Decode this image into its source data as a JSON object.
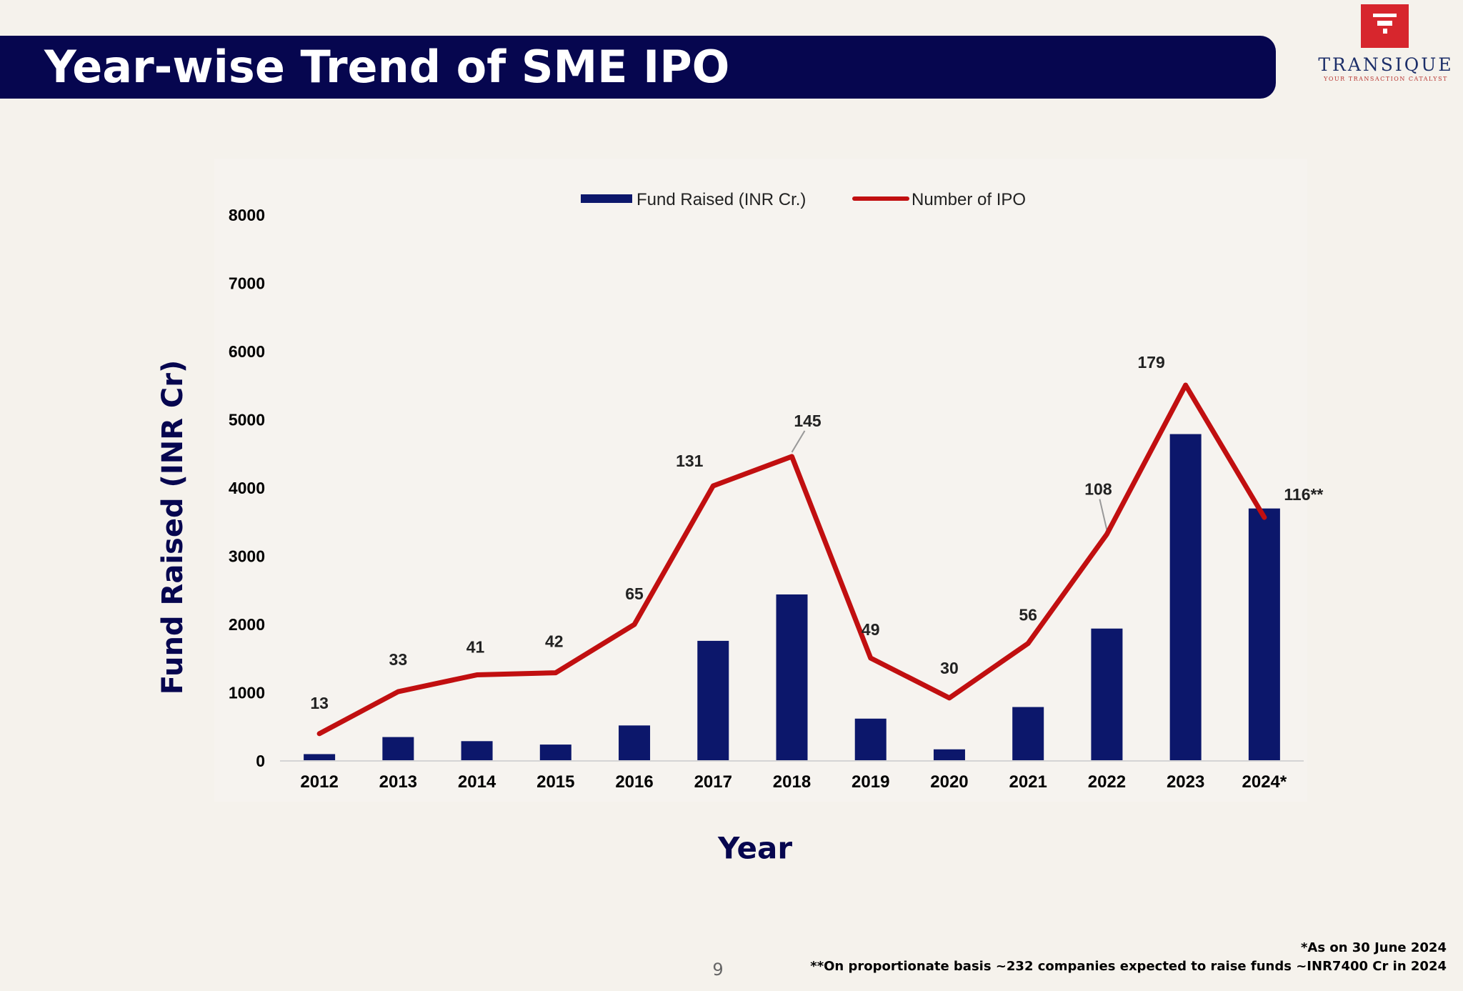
{
  "header": {
    "title": "Year-wise Trend of SME IPO"
  },
  "logo": {
    "name": "TRANSIQUE",
    "tagline": "YOUR TRANSACTION CATALYST"
  },
  "chart_data": {
    "type": "bar",
    "title": "",
    "xlabel": "Year",
    "ylabel": "Fund Raised (INR Cr)",
    "ylim": [
      0,
      8000
    ],
    "yticks": [
      "0",
      "1000",
      "2000",
      "3000",
      "4000",
      "5000",
      "6000",
      "7000",
      "8000"
    ],
    "categories": [
      "2012",
      "2013",
      "2014",
      "2015",
      "2016",
      "2017",
      "2018",
      "2019",
      "2020",
      "2021",
      "2022",
      "2023",
      "2024*"
    ],
    "series": [
      {
        "name": "Fund Raised (INR Cr.)",
        "type": "bar",
        "color": "#0c176b",
        "values": [
          100,
          350,
          290,
          240,
          520,
          1760,
          2440,
          620,
          170,
          790,
          1940,
          4790,
          3700
        ]
      },
      {
        "name": "Number of IPO",
        "type": "line",
        "color": "#c10f10",
        "values": [
          13,
          33,
          41,
          42,
          65,
          131,
          145,
          49,
          30,
          56,
          108,
          179,
          116
        ],
        "labels": [
          "13",
          "33",
          "41",
          "42",
          "65",
          "131",
          "145",
          "49",
          "30",
          "56",
          "108",
          "179",
          "116**"
        ]
      }
    ],
    "legend_position": "top-center",
    "grid": false
  },
  "footnotes": {
    "line1": "*As on 30 June 2024",
    "line2": "**On proportionate basis ~232 companies expected to raise funds ~INR7400 Cr in 2024"
  },
  "page_number": "9"
}
